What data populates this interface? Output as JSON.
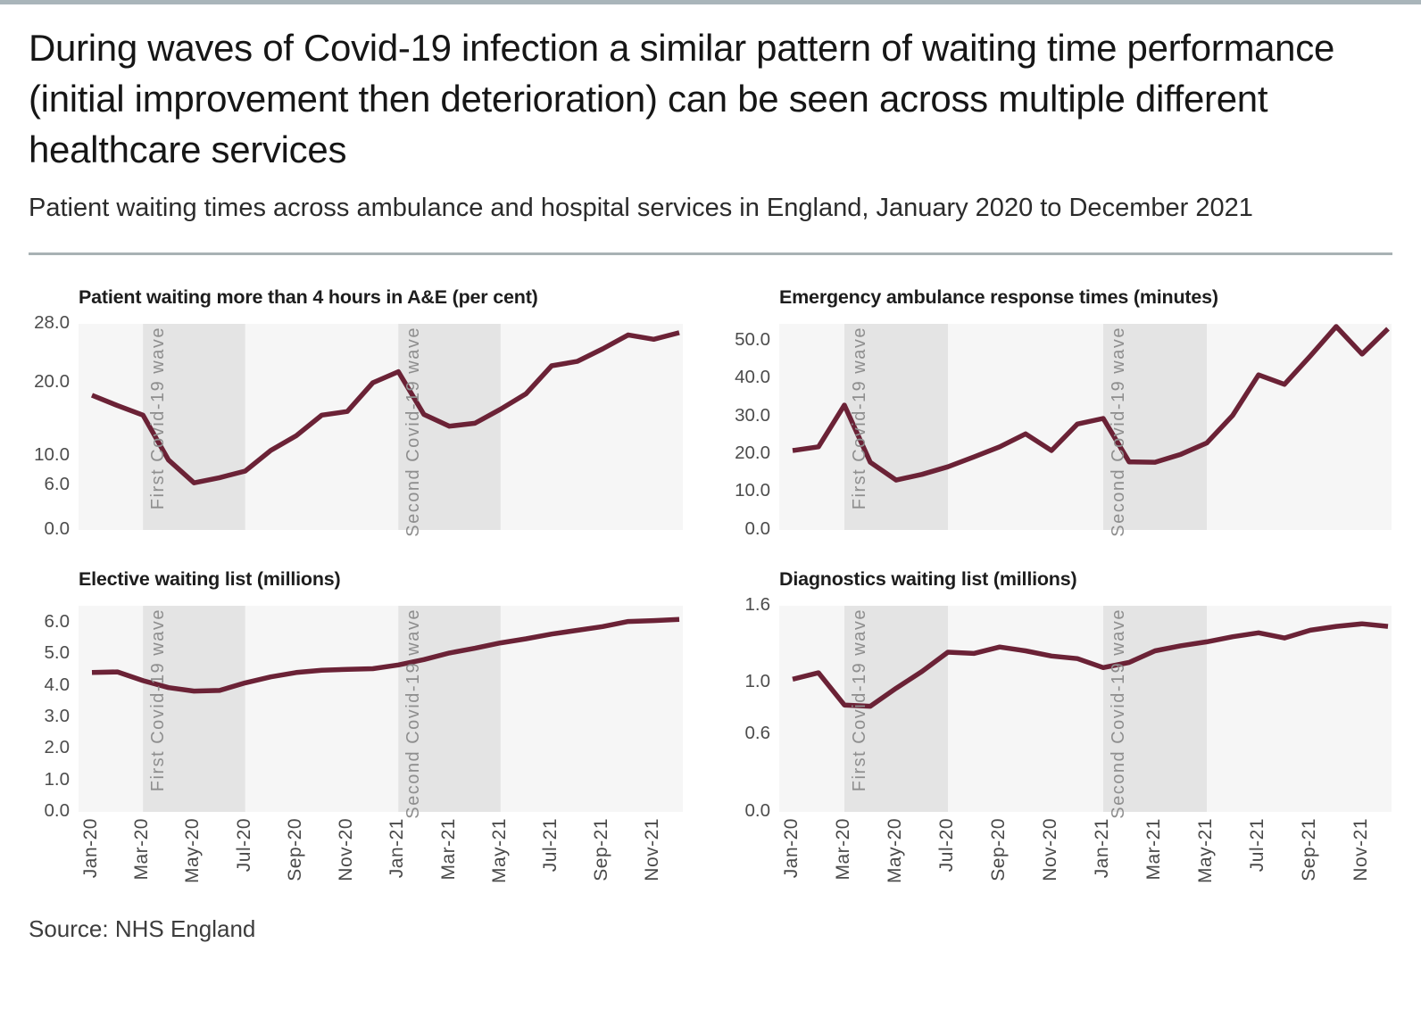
{
  "page": {
    "title": "During waves of Covid-19 infection a similar pattern of waiting time performance (initial improvement then deterioration) can be seen across multiple different healthcare services",
    "subtitle": "Patient waiting times across ambulance and hospital services in England, January 2020 to December 2021",
    "source": "Source: NHS England"
  },
  "colors": {
    "line": "#6b2236",
    "band": "#e4e4e4",
    "plot_bg": "#f6f6f6",
    "top_bar": "#a9b5ba",
    "divider": "#a8b2b4"
  },
  "months": [
    "Jan-20",
    "Feb-20",
    "Mar-20",
    "Apr-20",
    "May-20",
    "Jun-20",
    "Jul-20",
    "Aug-20",
    "Sep-20",
    "Oct-20",
    "Nov-20",
    "Dec-20",
    "Jan-21",
    "Feb-21",
    "Mar-21",
    "Apr-21",
    "May-21",
    "Jun-21",
    "Jul-21",
    "Aug-21",
    "Sep-21",
    "Oct-21",
    "Nov-21",
    "Dec-21"
  ],
  "x_tick_labels": [
    "Jan-20",
    "Mar-20",
    "May-20",
    "Jul-20",
    "Sep-20",
    "Nov-20",
    "Jan-21",
    "Mar-21",
    "May-21",
    "Jul-21",
    "Sep-21",
    "Nov-21"
  ],
  "x_tick_months": [
    0,
    2,
    4,
    6,
    8,
    10,
    12,
    14,
    16,
    18,
    20,
    22
  ],
  "bands": [
    {
      "label": "First Covid-19 wave",
      "from_month": 2,
      "to_month": 6
    },
    {
      "label": "Second Covid-19 wave",
      "from_month": 12,
      "to_month": 16
    }
  ],
  "chart_data": [
    {
      "type": "line",
      "title": "Patient waiting more than 4 hours in A&E (per cent)",
      "ylim": [
        0,
        28
      ],
      "yticks": [
        {
          "value": 0,
          "label": "0.0"
        },
        {
          "value": 6,
          "label": "6.0"
        },
        {
          "value": 10,
          "label": "10.0"
        },
        {
          "value": 20,
          "label": "20.0"
        },
        {
          "value": 28,
          "label": "28.0"
        }
      ],
      "values": [
        18.3,
        16.9,
        15.6,
        9.5,
        6.4,
        7.1,
        8.0,
        10.8,
        12.8,
        15.6,
        16.1,
        20.0,
        21.5,
        15.7,
        14.1,
        14.5,
        16.4,
        18.5,
        22.3,
        22.9,
        24.6,
        26.5,
        25.9,
        26.8
      ],
      "show_x_labels": false
    },
    {
      "type": "line",
      "title": "Emergency ambulance response times (minutes)",
      "ylim": [
        0,
        54.5
      ],
      "yticks": [
        {
          "value": 0,
          "label": "0.0"
        },
        {
          "value": 10,
          "label": "10.0"
        },
        {
          "value": 20,
          "label": "20.0"
        },
        {
          "value": 30,
          "label": "30.0"
        },
        {
          "value": 40,
          "label": "40.0"
        },
        {
          "value": 50,
          "label": "50.0"
        }
      ],
      "values": [
        21.0,
        22.0,
        33.0,
        17.9,
        13.2,
        14.7,
        16.7,
        19.3,
        22.0,
        25.4,
        21.0,
        28.0,
        29.5,
        18.0,
        17.9,
        20.0,
        23.0,
        30.3,
        41.0,
        38.5,
        46.0,
        53.8,
        46.5,
        53.2
      ],
      "show_x_labels": false
    },
    {
      "type": "line",
      "title": "Elective waiting list (millions)",
      "ylim": [
        0,
        6.55
      ],
      "yticks": [
        {
          "value": 0,
          "label": "0.0"
        },
        {
          "value": 1,
          "label": "1.0"
        },
        {
          "value": 2,
          "label": "2.0"
        },
        {
          "value": 3,
          "label": "3.0"
        },
        {
          "value": 4,
          "label": "4.0"
        },
        {
          "value": 5,
          "label": "5.0"
        },
        {
          "value": 6,
          "label": "6.0"
        }
      ],
      "values": [
        4.43,
        4.45,
        4.17,
        3.95,
        3.84,
        3.86,
        4.1,
        4.29,
        4.43,
        4.5,
        4.53,
        4.55,
        4.67,
        4.84,
        5.05,
        5.2,
        5.37,
        5.5,
        5.65,
        5.77,
        5.89,
        6.05,
        6.08,
        6.12
      ],
      "show_x_labels": true
    },
    {
      "type": "line",
      "title": "Diagnostics waiting list (millions)",
      "ylim": [
        0,
        1.6
      ],
      "yticks": [
        {
          "value": 0,
          "label": "0.0"
        },
        {
          "value": 0.6,
          "label": "0.6"
        },
        {
          "value": 1.0,
          "label": "1.0"
        },
        {
          "value": 1.6,
          "label": "1.6"
        }
      ],
      "values": [
        1.03,
        1.08,
        0.83,
        0.82,
        0.96,
        1.09,
        1.24,
        1.23,
        1.28,
        1.25,
        1.21,
        1.19,
        1.12,
        1.16,
        1.25,
        1.29,
        1.32,
        1.36,
        1.39,
        1.35,
        1.41,
        1.44,
        1.46,
        1.44
      ],
      "show_x_labels": true
    }
  ]
}
